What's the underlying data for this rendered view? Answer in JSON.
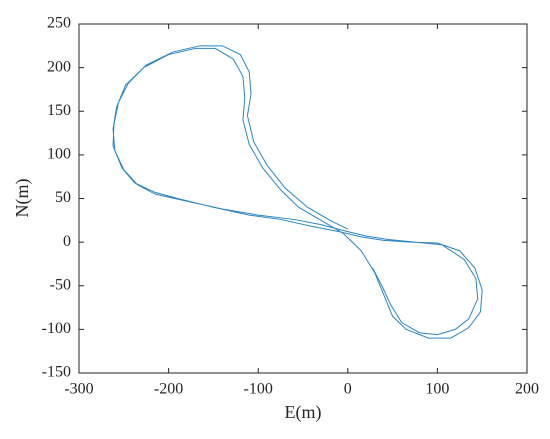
{
  "chart_data": {
    "type": "line",
    "xlabel": "E(m)",
    "ylabel": "N(m)",
    "xlim": [
      -300,
      200
    ],
    "ylim": [
      -150,
      250
    ],
    "xticks": [
      -300,
      -200,
      -100,
      0,
      100,
      200
    ],
    "yticks": [
      -150,
      -100,
      -50,
      0,
      50,
      100,
      150,
      200,
      250
    ],
    "series": [
      {
        "color": "#2e86c1",
        "x": [
          28,
          38,
          48,
          60,
          80,
          100,
          120,
          135,
          145,
          143,
          130,
          105,
          75,
          45,
          20,
          0,
          -30,
          -60,
          -100,
          -140,
          -180,
          -215,
          -235,
          -250,
          -260,
          -262,
          -258,
          -248,
          -228,
          -200,
          -170,
          -148,
          -128,
          -117,
          -115,
          -117,
          -110,
          -95,
          -75,
          -55,
          -30,
          -5,
          15,
          30,
          40,
          50,
          65,
          90,
          115,
          135,
          148,
          150,
          142,
          125,
          100,
          70,
          40,
          15,
          -10,
          -40,
          -75,
          -110,
          -150,
          -190,
          -215,
          -238,
          -252,
          -262,
          -261,
          -256,
          -245,
          -225,
          -195,
          -165,
          -140,
          -120,
          -110,
          -108,
          -112,
          -105,
          -90,
          -70,
          -45,
          -20,
          0
        ],
        "y": [
          -30,
          -50,
          -72,
          -92,
          -104,
          -106,
          -100,
          -88,
          -65,
          -42,
          -20,
          -3,
          0,
          3,
          7,
          12,
          20,
          26,
          31,
          38,
          47,
          55,
          66,
          83,
          105,
          130,
          155,
          180,
          200,
          215,
          222,
          222,
          210,
          190,
          165,
          140,
          112,
          85,
          60,
          40,
          25,
          10,
          -10,
          -35,
          -60,
          -85,
          -100,
          -110,
          -110,
          -98,
          -80,
          -55,
          -30,
          -10,
          -1,
          0,
          2,
          6,
          12,
          18,
          26,
          31,
          40,
          50,
          57,
          68,
          85,
          110,
          135,
          160,
          182,
          203,
          218,
          225,
          225,
          215,
          195,
          170,
          145,
          115,
          88,
          62,
          40,
          25,
          15
        ]
      }
    ]
  }
}
